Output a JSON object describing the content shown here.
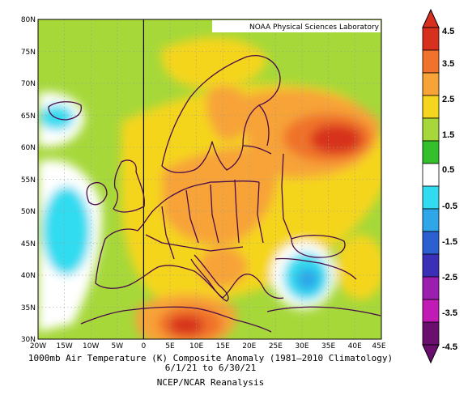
{
  "map": {
    "attribution": "NOAA Physical Sciences Laboratory",
    "lat_labels": [
      "80N",
      "75N",
      "70N",
      "65N",
      "60N",
      "55N",
      "50N",
      "45N",
      "40N",
      "35N",
      "30N"
    ],
    "lon_labels": [
      "20W",
      "15W",
      "10W",
      "5W",
      "0",
      "5E",
      "10E",
      "15E",
      "20E",
      "25E",
      "30E",
      "35E",
      "40E",
      "45E"
    ],
    "extent": {
      "lon_min": -20,
      "lon_max": 45,
      "lat_min": 30,
      "lat_max": 80
    },
    "anomaly_regions": [
      {
        "name": "western-russia-max",
        "value": 3.5
      },
      {
        "name": "north-africa-max",
        "value": 4.0
      },
      {
        "name": "north-atlantic-cold",
        "value": -1.0
      },
      {
        "name": "eastern-med-cold",
        "value": -1.5
      }
    ]
  },
  "colorbar": {
    "labels": [
      "4.5",
      "3.5",
      "2.5",
      "1.5",
      "0.5",
      "-0.5",
      "-1.5",
      "-2.5",
      "-3.5",
      "-4.5"
    ],
    "colors": [
      "#d7301f",
      "#f0722c",
      "#f7a338",
      "#f5d51e",
      "#a6d83a",
      "#33c02a",
      "#ffffff",
      "#32dcf0",
      "#2ea6e8",
      "#2c5fd0",
      "#3b2fb8",
      "#9a1fb0",
      "#c21bb5",
      "#6a0f6e"
    ]
  },
  "caption": {
    "line1": "1000mb Air Temperature (K) Composite Anomaly (1981–2010 Climatology)",
    "line2": "6/1/21  to 6/30/21",
    "source": "NCEP/NCAR Reanalysis"
  }
}
